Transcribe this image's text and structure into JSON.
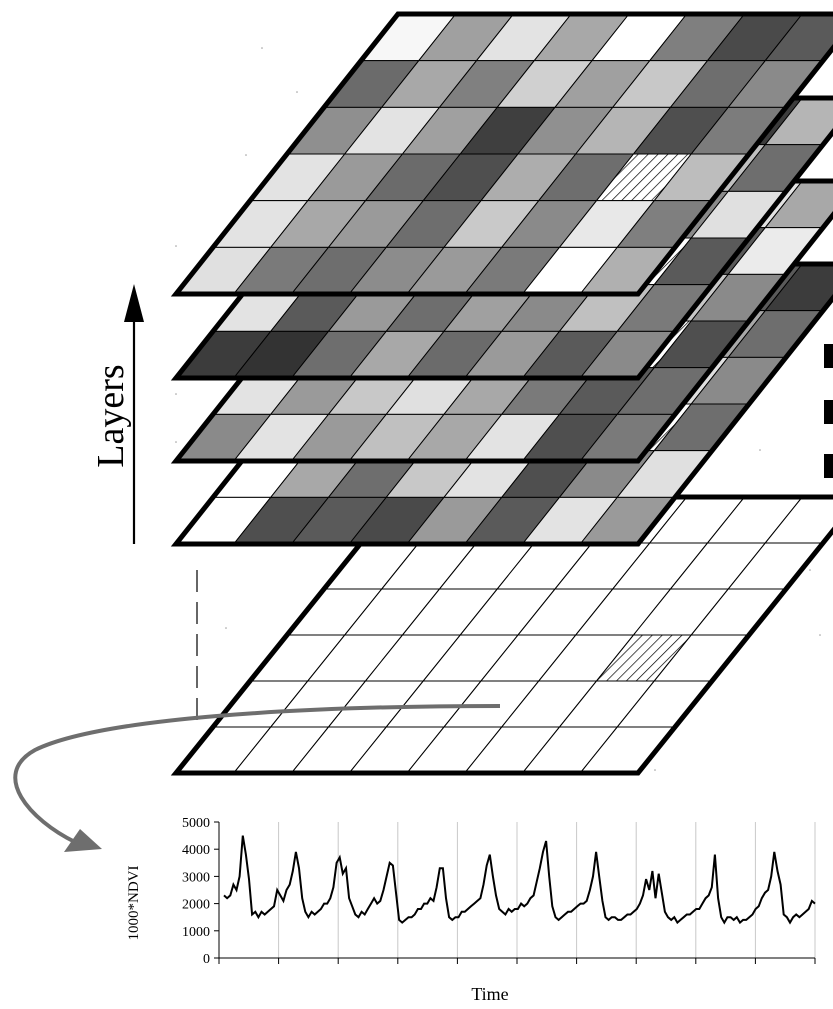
{
  "diagram": {
    "layers_label": "Layers",
    "layers_arrow_direction": "up",
    "grid": {
      "rows": 6,
      "cols": 8
    },
    "highlight_cell": {
      "row": 3,
      "col": 6
    },
    "stack": [
      {
        "name": "layer-1",
        "shades": [
          [
            "#f7f7f7",
            "#a0a0a0",
            "#e3e3e3",
            "#a8a8a8",
            "#ffffff",
            "#7f7f7f",
            "#4a4a4a",
            "#5a5a5a"
          ],
          [
            "#6b6b6b",
            "#a8a8a8",
            "#808080",
            "#d0d0d0",
            "#a0a0a0",
            "#c8c8c8",
            "#6e6e6e",
            "#8a8a8a"
          ],
          [
            "#8f8f8f",
            "#e3e3e3",
            "#a0a0a0",
            "#3f3f3f",
            "#909090",
            "#b5b5b5",
            "#4f4f4f",
            "#7c7c7c"
          ],
          [
            "#e3e3e3",
            "#9a9a9a",
            "#6b6b6b",
            "#4f4f4f",
            "#adadad",
            "#6e6e6e",
            "#8a8a8a",
            "#bdbdbd"
          ],
          [
            "#e3e3e3",
            "#a8a8a8",
            "#9a9a9a",
            "#6e6e6e",
            "#c9c9c9",
            "#8a8a8a",
            "#e8e8e8",
            "#7f7f7f"
          ],
          [
            "#e0e0e0",
            "#7a7a7a",
            "#6e6e6e",
            "#8c8c8c",
            "#9a9a9a",
            "#7a7a7a",
            "#ffffff",
            "#b0b0b0"
          ]
        ]
      },
      {
        "name": "layer-2",
        "shades": [
          [
            "#e8e8e8",
            "#9a9a9a",
            "#c7c7c7",
            "#7a7a7a",
            "#5a5a5a",
            "#a8a8a8",
            "#3c3c3c",
            "#b5b5b5"
          ],
          [
            "#7a7a7a",
            "#e3e3e3",
            "#a8a8a8",
            "#6b6b6b",
            "#d5d5d5",
            "#8f8f8f",
            "#c0c0c0",
            "#6e6e6e"
          ],
          [
            "#b0b0b0",
            "#6e6e6e",
            "#e3e3e3",
            "#9a9a9a",
            "#4f4f4f",
            "#bdbdbd",
            "#8a8a8a",
            "#e0e0e0"
          ],
          [
            "#9a9a9a",
            "#c4c4c4",
            "#7f7f7f",
            "#b5b5b5",
            "#8a8a8a",
            "#6b6b6b",
            "#a8a8a8",
            "#5a5a5a"
          ],
          [
            "#e3e3e3",
            "#5a5a5a",
            "#9a9a9a",
            "#6e6e6e",
            "#a0a0a0",
            "#8a8a8a",
            "#c0c0c0",
            "#7a7a7a"
          ],
          [
            "#3c3c3c",
            "#333333",
            "#6e6e6e",
            "#a8a8a8",
            "#6b6b6b",
            "#9a9a9a",
            "#5a5a5a",
            "#8a8a8a"
          ]
        ]
      },
      {
        "name": "layer-3",
        "shades": [
          [
            "#e8e8e8",
            "#c0c0c0",
            "#5a5a5a",
            "#9a9a9a",
            "#c8c8c8",
            "#7a7a7a",
            "#e3e3e3",
            "#a8a8a8"
          ],
          [
            "#8a8a8a",
            "#e3e3e3",
            "#9a9a9a",
            "#6e6e6e",
            "#a8a8a8",
            "#c0c0c0",
            "#5a5a5a",
            "#ebebeb"
          ],
          [
            "#6e6e6e",
            "#a8a8a8",
            "#e0e0e0",
            "#7f7f7f",
            "#9a9a9a",
            "#5a5a5a",
            "#c8c8c8",
            "#8a8a8a"
          ],
          [
            "#c0c0c0",
            "#7a7a7a",
            "#a8a8a8",
            "#e3e3e3",
            "#6e6e6e",
            "#8a8a8a",
            "#e0e0e0",
            "#4f4f4f"
          ],
          [
            "#e3e3e3",
            "#9a9a9a",
            "#c8c8c8",
            "#e0e0e0",
            "#a8a8a8",
            "#7a7a7a",
            "#5a5a5a",
            "#6e6e6e"
          ],
          [
            "#8a8a8a",
            "#e3e3e3",
            "#9a9a9a",
            "#c0c0c0",
            "#a8a8a8",
            "#e3e3e3",
            "#4f4f4f",
            "#7a7a7a"
          ]
        ]
      },
      {
        "name": "layer-4",
        "shades": [
          [
            "#6e6e6e",
            "#a8a8a8",
            "#c8c8c8",
            "#9a9a9a",
            "#e3e3e3",
            "#7a7a7a",
            "#5a5a5a",
            "#3c3c3c"
          ],
          [
            "#b5b5b5",
            "#6e6e6e",
            "#9a9a9a",
            "#e3e3e3",
            "#8a8a8a",
            "#c0c0c0",
            "#a8a8a8",
            "#6e6e6e"
          ],
          [
            "#9a9a9a",
            "#e3e3e3",
            "#7a7a7a",
            "#a8a8a8",
            "#c8c8c8",
            "#6e6e6e",
            "#e0e0e0",
            "#8a8a8a"
          ],
          [
            "#c8c8c8",
            "#9a9a9a",
            "#e3e3e3",
            "#7a7a7a",
            "#a8a8a8",
            "#5a5a5a",
            "#9a9a9a",
            "#6e6e6e"
          ],
          [
            "#ffffff",
            "#a8a8a8",
            "#6e6e6e",
            "#c8c8c8",
            "#e3e3e3",
            "#4f4f4f",
            "#8a8a8a",
            "#e0e0e0"
          ],
          [
            "#ffffff",
            "#4f4f4f",
            "#5a5a5a",
            "#4a4a4a",
            "#9a9a9a",
            "#5a5a5a",
            "#e3e3e3",
            "#9a9a9a"
          ]
        ]
      }
    ],
    "base_layer": {
      "name": "base-grid",
      "fill": "#ffffff"
    }
  },
  "chart_data": {
    "type": "line",
    "xlabel": "Time",
    "ylabel": "1000*NDVI",
    "ylim": [
      0,
      5000
    ],
    "yticks": [
      0,
      1000,
      2000,
      3000,
      4000,
      5000
    ],
    "x_tick_count": 11,
    "grid": "vertical",
    "series": [
      {
        "values": [
          2300,
          2200,
          2300,
          2700,
          2500,
          3000,
          4500,
          3800,
          2900,
          1600,
          1700,
          1500,
          1700,
          1600,
          1700,
          1800,
          1900,
          2500,
          2300,
          2100,
          2500,
          2700,
          3200,
          3900,
          3300,
          2200,
          1700,
          1500,
          1700,
          1600,
          1700,
          1800,
          2000,
          2000,
          2200,
          2600,
          3500,
          3700,
          3100,
          3300,
          2200,
          1900,
          1600,
          1500,
          1700,
          1600,
          1800,
          2000,
          2200,
          2000,
          2100,
          2500,
          3000,
          3500,
          3400,
          2400,
          1400,
          1300,
          1400,
          1500,
          1500,
          1600,
          1800,
          1800,
          2000,
          2000,
          2200,
          2100,
          2600,
          3300,
          3300,
          2200,
          1500,
          1400,
          1500,
          1500,
          1700,
          1700,
          1800,
          1900,
          2000,
          2100,
          2200,
          2700,
          3400,
          3800,
          3000,
          2300,
          1800,
          1700,
          1600,
          1800,
          1700,
          1800,
          1800,
          2000,
          1900,
          2000,
          2200,
          2300,
          2800,
          3300,
          3900,
          4300,
          3000,
          1900,
          1500,
          1400,
          1500,
          1600,
          1700,
          1700,
          1800,
          1900,
          2000,
          2000,
          2100,
          2500,
          3000,
          3900,
          3000,
          2100,
          1500,
          1400,
          1500,
          1500,
          1400,
          1400,
          1500,
          1600,
          1600,
          1700,
          1800,
          2000,
          2300,
          2900,
          2500,
          3200,
          2200,
          3100,
          2400,
          1700,
          1500,
          1400,
          1500,
          1300,
          1400,
          1500,
          1600,
          1600,
          1700,
          1800,
          1800,
          2000,
          2200,
          2300,
          2600,
          3800,
          2200,
          1500,
          1300,
          1500,
          1500,
          1400,
          1500,
          1300,
          1400,
          1400,
          1500,
          1600,
          1800,
          1900,
          2200,
          2400,
          2500,
          3000,
          3900,
          3200,
          2700,
          1600,
          1500,
          1300,
          1500,
          1600,
          1500,
          1600,
          1700,
          1800,
          2100,
          2000
        ]
      }
    ]
  }
}
